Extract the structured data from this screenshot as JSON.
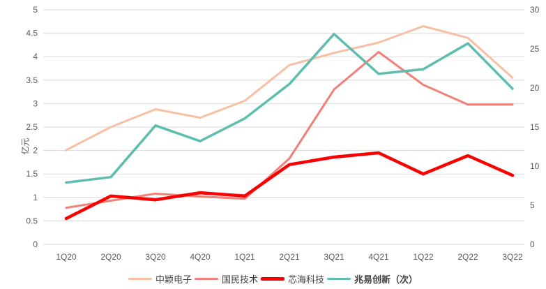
{
  "chart_data": {
    "type": "line",
    "title": "",
    "categories": [
      "1Q20",
      "2Q20",
      "3Q20",
      "4Q20",
      "1Q21",
      "2Q21",
      "3Q21",
      "4Q21",
      "1Q22",
      "2Q22",
      "3Q22"
    ],
    "series": [
      {
        "name": "中颖电子",
        "axis": "left",
        "color": "#F8BFA3",
        "width": 3,
        "bold_legend": false,
        "values": [
          2.01,
          2.5,
          2.88,
          2.7,
          3.06,
          3.82,
          4.08,
          4.3,
          4.65,
          4.4,
          3.55
        ]
      },
      {
        "name": "国民技术",
        "axis": "left",
        "color": "#F08078",
        "width": 3,
        "bold_legend": false,
        "values": [
          0.78,
          0.93,
          1.08,
          1.02,
          0.97,
          1.83,
          3.3,
          4.1,
          3.4,
          2.98,
          2.98
        ]
      },
      {
        "name": "芯海科技",
        "axis": "left",
        "color": "#FB0000",
        "width": 4.5,
        "bold_legend": false,
        "values": [
          0.55,
          1.03,
          0.95,
          1.1,
          1.03,
          1.7,
          1.86,
          1.95,
          1.5,
          1.89,
          1.47
        ]
      },
      {
        "name": "兆易创新（次）",
        "axis": "right",
        "color": "#5FBDB0",
        "width": 3.5,
        "bold_legend": true,
        "values": [
          7.9,
          8.6,
          15.2,
          13.2,
          16.1,
          20.5,
          26.9,
          21.8,
          22.4,
          25.7,
          19.9
        ]
      }
    ],
    "left_axis": {
      "label": "亿元",
      "min": 0,
      "max": 5,
      "step": 0.5,
      "ticks": [
        "0",
        "0.5",
        "1",
        "1.5",
        "2",
        "2.5",
        "3",
        "3.5",
        "4",
        "4.5",
        "5"
      ]
    },
    "right_axis": {
      "label": "",
      "min": 0,
      "max": 30,
      "step": 5,
      "ticks": [
        "0",
        "5",
        "10",
        "15",
        "20",
        "25",
        "30"
      ]
    },
    "grid": true,
    "gridline_color": "#D9D9D9",
    "legend_position": "bottom"
  }
}
